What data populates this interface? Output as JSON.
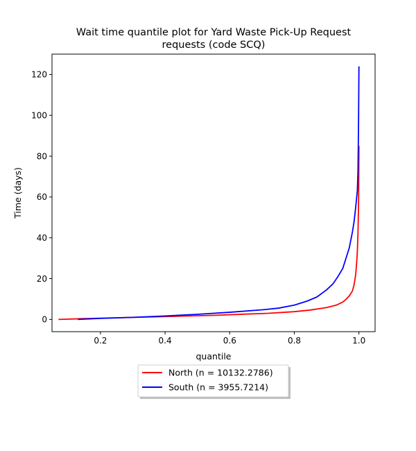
{
  "chart_data": {
    "type": "line",
    "title": "Wait time quantile plot for Yard Waste Pick-Up Request requests (code SCQ)",
    "title_lines": [
      "Wait time quantile plot for Yard Waste Pick-Up Request",
      "requests (code SCQ)"
    ],
    "xlabel": "quantile",
    "ylabel": "Time (days)",
    "xlim": [
      0.05,
      1.05
    ],
    "ylim": [
      -6,
      130
    ],
    "xticks": [
      0.2,
      0.4,
      0.6,
      0.8,
      1.0
    ],
    "xtick_labels": [
      "0.2",
      "0.4",
      "0.6",
      "0.8",
      "1.0"
    ],
    "yticks": [
      0,
      20,
      40,
      60,
      80,
      100,
      120
    ],
    "ytick_labels": [
      "0",
      "20",
      "40",
      "60",
      "80",
      "100",
      "120"
    ],
    "grid": false,
    "legend_position": "below-center",
    "series": [
      {
        "name": "North (n = 10132.2786)",
        "color": "#ff0000",
        "points": [
          [
            0.07,
            0.0
          ],
          [
            0.15,
            0.4
          ],
          [
            0.25,
            0.8
          ],
          [
            0.35,
            1.2
          ],
          [
            0.45,
            1.6
          ],
          [
            0.55,
            2.0
          ],
          [
            0.65,
            2.6
          ],
          [
            0.72,
            3.0
          ],
          [
            0.8,
            3.8
          ],
          [
            0.85,
            4.6
          ],
          [
            0.9,
            5.8
          ],
          [
            0.93,
            7.0
          ],
          [
            0.95,
            8.5
          ],
          [
            0.96,
            9.8
          ],
          [
            0.97,
            11.5
          ],
          [
            0.98,
            14.0
          ],
          [
            0.985,
            17.0
          ],
          [
            0.99,
            22.0
          ],
          [
            0.993,
            28.0
          ],
          [
            0.995,
            33.0
          ],
          [
            0.997,
            42.0
          ],
          [
            0.998,
            50.0
          ],
          [
            0.999,
            60.0
          ],
          [
            0.9995,
            70.0
          ],
          [
            1.0,
            85.0
          ]
        ]
      },
      {
        "name": "South (n = 3955.7214)",
        "color": "#0000ff",
        "points": [
          [
            0.13,
            0.0
          ],
          [
            0.2,
            0.5
          ],
          [
            0.3,
            1.0
          ],
          [
            0.4,
            1.7
          ],
          [
            0.5,
            2.5
          ],
          [
            0.6,
            3.5
          ],
          [
            0.7,
            4.7
          ],
          [
            0.75,
            5.5
          ],
          [
            0.8,
            7.0
          ],
          [
            0.84,
            9.0
          ],
          [
            0.87,
            11.0
          ],
          [
            0.9,
            14.5
          ],
          [
            0.92,
            17.5
          ],
          [
            0.935,
            21.0
          ],
          [
            0.95,
            25.0
          ],
          [
            0.96,
            30.0
          ],
          [
            0.97,
            35.0
          ],
          [
            0.98,
            43.0
          ],
          [
            0.985,
            48.0
          ],
          [
            0.99,
            55.0
          ],
          [
            0.995,
            63.0
          ],
          [
            0.997,
            72.0
          ],
          [
            0.998,
            85.0
          ],
          [
            0.999,
            100.0
          ],
          [
            1.0,
            124.0
          ]
        ]
      }
    ]
  }
}
